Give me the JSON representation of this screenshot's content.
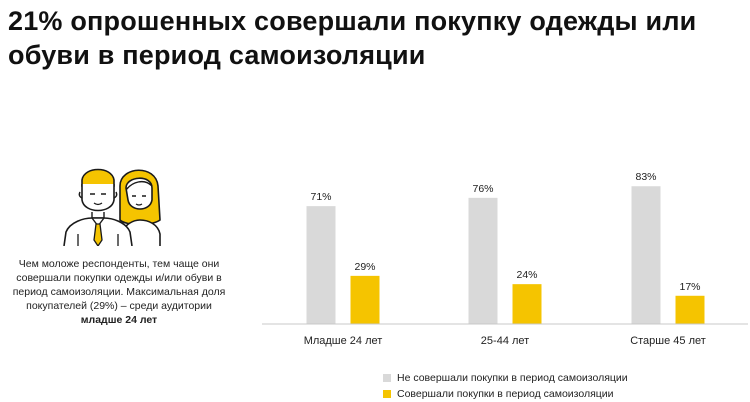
{
  "headline": "21% опрошенных совершали покупку одежды или обуви в период самоизоляции",
  "side_note": {
    "text": "Чем моложе респонденты, тем чаще они совершали покупки одежды и/или обуви в период самоизоляции. Максимальная доля покупателей (29%) – среди аудитории",
    "emphasis": "младше 24 лет"
  },
  "illustration": {
    "icon": "people-icon",
    "accent_color": "#F5C400",
    "outline_color": "#1a1a1a"
  },
  "chart_data": {
    "type": "bar",
    "title": "21% опрошенных совершали покупку одежды или обуви в период самоизоляции",
    "categories": [
      "Младше 24 лет",
      "25-44 лет",
      "Старше 45 лет"
    ],
    "series": [
      {
        "name": "Не совершали покупки в период самоизоляции",
        "values": [
          71,
          76,
          83
        ],
        "labels": [
          "71%",
          "76%",
          "83%"
        ],
        "color": "#D9D9D9"
      },
      {
        "name": "Совершали покупки в период самоизоляции",
        "values": [
          29,
          24,
          17
        ],
        "labels": [
          "29%",
          "24%",
          "17%"
        ],
        "color": "#F5C400"
      }
    ],
    "ylim": [
      0,
      100
    ],
    "grid": false,
    "legend_position": "bottom"
  }
}
